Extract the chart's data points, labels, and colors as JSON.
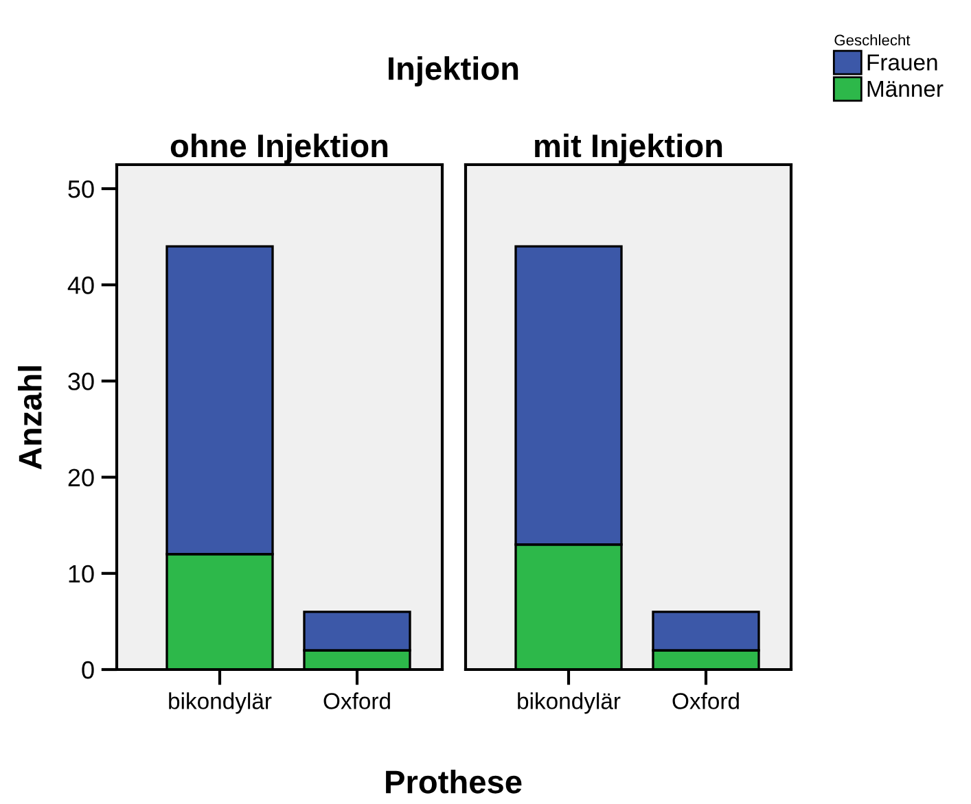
{
  "chart_data": [
    {
      "type": "bar",
      "title": "ohne Injektion",
      "subtitle": "Injektion",
      "xlabel": "Prothese",
      "ylabel": "Anzahl",
      "legend_title": "Geschlecht",
      "legend": "top right",
      "stacked": true,
      "grid": false,
      "categories": [
        "bikondylär",
        "Oxford"
      ],
      "series": [
        {
          "name": "Männer",
          "color": "#2db84a",
          "values": [
            12,
            2
          ]
        },
        {
          "name": "Frauen",
          "color": "#3c58a8",
          "values": [
            32,
            4
          ]
        }
      ],
      "ylim": [
        0,
        52.5
      ],
      "yticks": [
        0,
        10,
        20,
        30,
        40,
        50
      ]
    },
    {
      "type": "bar",
      "title": "mit Injektion",
      "stacked": true,
      "grid": false,
      "tick_labels": "x",
      "categories": [
        "bikondylär",
        "Oxford"
      ],
      "series": [
        {
          "color": "#2db84a",
          "values": [
            13,
            2
          ]
        },
        {
          "color": "#3c58a8",
          "values": [
            31,
            4
          ]
        }
      ],
      "ylim": [
        0,
        52.5
      ],
      "yticks": [
        0,
        10,
        20,
        30,
        40,
        50
      ]
    }
  ]
}
